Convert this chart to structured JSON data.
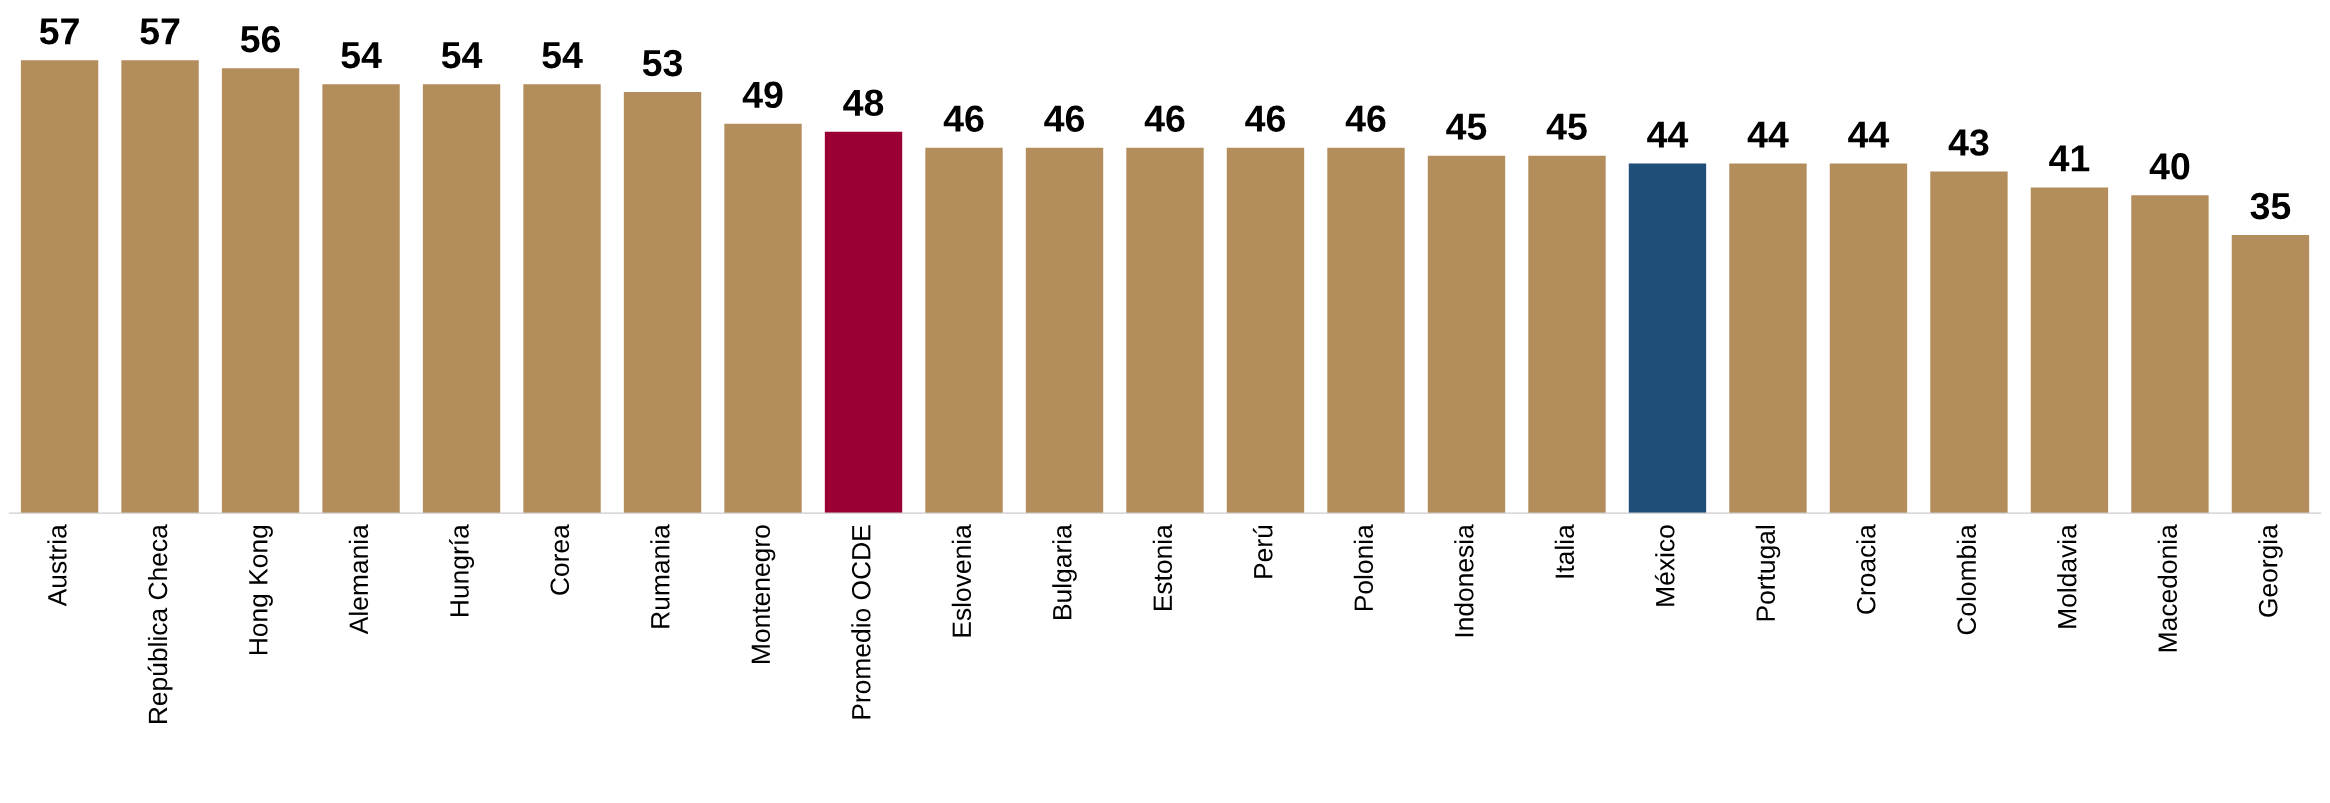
{
  "chart_data": {
    "type": "bar",
    "categories": [
      "Austria",
      "República Checa",
      "Hong Kong",
      "Alemania",
      "Hungría",
      "Corea",
      "Rumania",
      "Montenegro",
      "Promedio OCDE",
      "Eslovenia",
      "Bulgaria",
      "Estonia",
      "Perú",
      "Polonia",
      "Indonesia",
      "Italia",
      "México",
      "Portugal",
      "Croacia",
      "Colombia",
      "Moldavia",
      "Macedonia",
      "Georgia"
    ],
    "values": [
      57,
      57,
      56,
      54,
      54,
      54,
      53,
      49,
      48,
      46,
      46,
      46,
      46,
      46,
      45,
      45,
      44,
      44,
      44,
      43,
      41,
      40,
      35
    ],
    "colors": [
      "#b38d5b",
      "#b38d5b",
      "#b38d5b",
      "#b38d5b",
      "#b38d5b",
      "#b38d5b",
      "#b38d5b",
      "#b38d5b",
      "#9b0034",
      "#b38d5b",
      "#b38d5b",
      "#b38d5b",
      "#b38d5b",
      "#b38d5b",
      "#b38d5b",
      "#b38d5b",
      "#1f4e79",
      "#b38d5b",
      "#b38d5b",
      "#b38d5b",
      "#b38d5b",
      "#b38d5b",
      "#b38d5b"
    ],
    "data_labels": true,
    "tick_labels": "x",
    "grid": false,
    "legend": false
  }
}
